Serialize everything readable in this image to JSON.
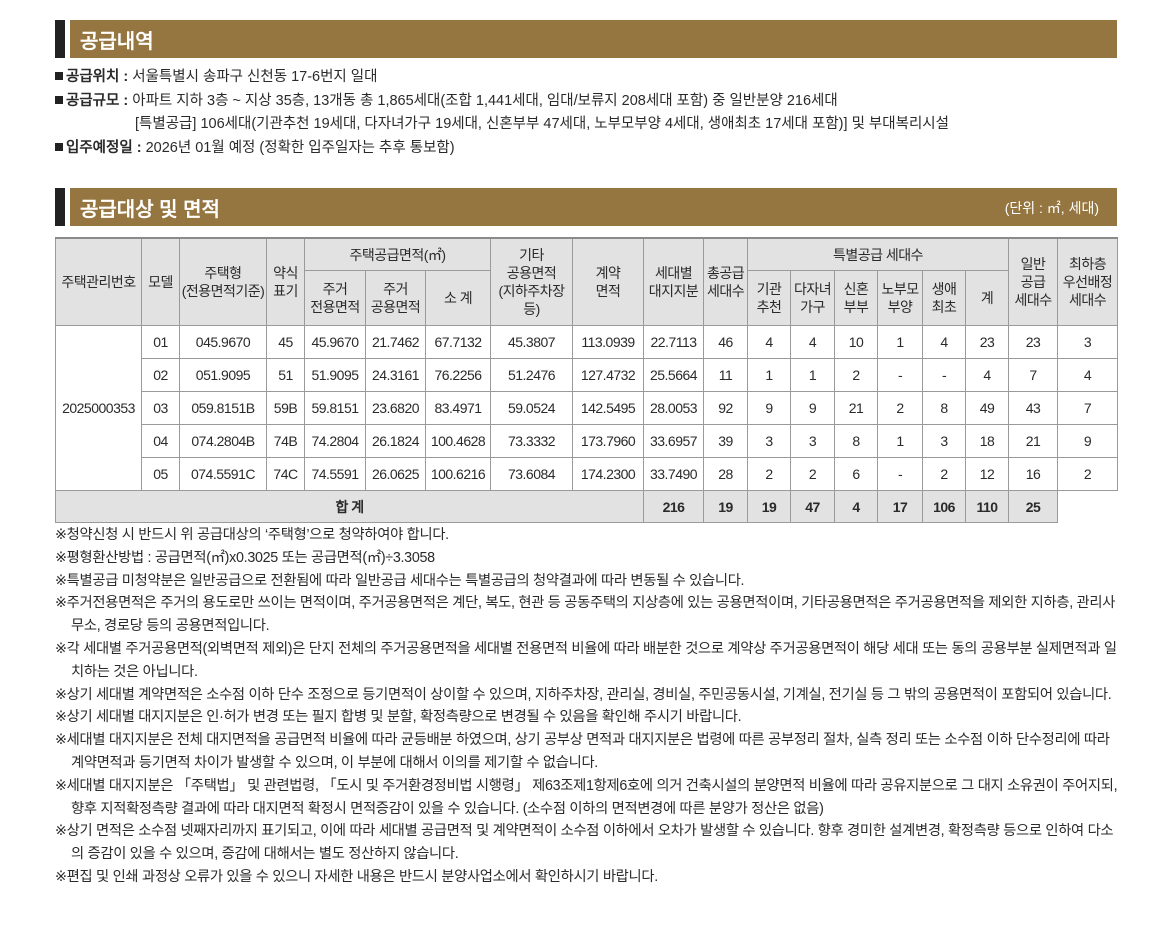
{
  "section1": {
    "title": "공급내역",
    "items": [
      {
        "label": "공급위치 :",
        "value": "서울특별시 송파구 신천동 17-6번지 일대"
      },
      {
        "label": "공급규모 :",
        "value": "아파트 지하 3층 ~ 지상 35층, 13개동 총 1,865세대(조합 1,441세대, 임대/보류지 208세대 포함) 중 일반분양 216세대",
        "value2": "[특별공급] 106세대(기관추천 19세대, 다자녀가구 19세대, 신혼부부 47세대, 노부모부양 4세대, 생애최초 17세대 포함)] 및 부대복리시설"
      },
      {
        "label": "입주예정일 :",
        "value": "2026년 01월 예정 (정확한 입주일자는 추후 통보함)"
      }
    ]
  },
  "section2": {
    "title": "공급대상 및 면적",
    "unit": "(단위 : ㎡, 세대)"
  },
  "table": {
    "headers": {
      "management_no": "주택관리번호",
      "model": "모델",
      "type": "주택형\n(전용면적기준)",
      "abbr": "약식\n표기",
      "supply_area": "주택공급면적(㎡)",
      "exclusive": "주거\n전용면적",
      "common": "주거\n공용면적",
      "subtotal": "소 계",
      "other_common": "기타\n공용면적\n(지하주차장등)",
      "contract_area": "계약\n면적",
      "land_share": "세대별\n대지지분",
      "total_units": "총공급\n세대수",
      "special": "특별공급 세대수",
      "inst": "기관\n추천",
      "multi_child": "다자녀\n가구",
      "newlywed": "신혼\n부부",
      "parents": "노부모\n부양",
      "first_time": "생애\n최초",
      "special_sum": "계",
      "general": "일반\n공급\n세대수",
      "lowest_floor": "최하층\n우선배정\n세대수"
    },
    "management_no": "2025000353",
    "rows": [
      [
        "01",
        "045.9670",
        "45",
        "45.9670",
        "21.7462",
        "67.7132",
        "45.3807",
        "113.0939",
        "22.7113",
        "46",
        "4",
        "4",
        "10",
        "1",
        "4",
        "23",
        "23",
        "3"
      ],
      [
        "02",
        "051.9095",
        "51",
        "51.9095",
        "24.3161",
        "76.2256",
        "51.2476",
        "127.4732",
        "25.5664",
        "11",
        "1",
        "1",
        "2",
        "-",
        "-",
        "4",
        "7",
        "4"
      ],
      [
        "03",
        "059.8151B",
        "59B",
        "59.8151",
        "23.6820",
        "83.4971",
        "59.0524",
        "142.5495",
        "28.0053",
        "92",
        "9",
        "9",
        "21",
        "2",
        "8",
        "49",
        "43",
        "7"
      ],
      [
        "04",
        "074.2804B",
        "74B",
        "74.2804",
        "26.1824",
        "100.4628",
        "73.3332",
        "173.7960",
        "33.6957",
        "39",
        "3",
        "3",
        "8",
        "1",
        "3",
        "18",
        "21",
        "9"
      ],
      [
        "05",
        "074.5591C",
        "74C",
        "74.5591",
        "26.0625",
        "100.6216",
        "73.6084",
        "174.2300",
        "33.7490",
        "28",
        "2",
        "2",
        "6",
        "-",
        "2",
        "12",
        "16",
        "2"
      ]
    ],
    "total": {
      "label": "합 계",
      "values": [
        "216",
        "19",
        "19",
        "47",
        "4",
        "17",
        "106",
        "110",
        "25"
      ]
    }
  },
  "notes": [
    "※청약신청 시 반드시 위 공급대상의 ‘주택형’으로 청약하여야 합니다.",
    "※평형환산방법 : 공급면적(㎡)x0.3025 또는 공급면적(㎡)÷3.3058",
    "※특별공급 미청약분은 일반공급으로 전환됨에 따라 일반공급 세대수는 특별공급의 청약결과에 따라 변동될 수 있습니다.",
    "※주거전용면적은 주거의 용도로만 쓰이는 면적이며, 주거공용면적은 계단, 복도, 현관 등 공동주택의 지상층에 있는 공용면적이며, 기타공용면적은 주거공용면적을 제외한 지하층, 관리사무소, 경로당 등의 공용면적입니다.",
    "※각 세대별 주거공용면적(외벽면적 제외)은 단지 전체의 주거공용면적을 세대별 전용면적 비율에 따라 배분한 것으로 계약상 주거공용면적이 해당 세대 또는 동의 공용부분 실제면적과 일치하는 것은 아닙니다.",
    "※상기 세대별 계약면적은 소수점 이하 단수 조정으로 등기면적이 상이할 수 있으며, 지하주차장, 관리실, 경비실, 주민공동시설, 기계실, 전기실 등 그 밖의 공용면적이 포함되어 있습니다.",
    "※상기 세대별 대지지분은 인·허가 변경 또는 필지 합병 및 분할, 확정측량으로 변경될 수 있음을 확인해 주시기 바랍니다.",
    "※세대별 대지지분은 전체 대지면적을 공급면적 비율에 따라 균등배분 하였으며, 상기 공부상 면적과 대지지분은 법령에 따른 공부정리 절차, 실측 정리 또는 소수점 이하 단수정리에 따라 계약면적과 등기면적 차이가 발생할 수 있으며, 이 부분에 대해서 이의를 제기할 수 없습니다.",
    "※세대별 대지지분은 「주택법」 및 관련법령, 「도시 및 주거환경정비법 시행령」 제63조제1항제6호에 의거 건축시설의 분양면적 비율에 따라 공유지분으로 그 대지 소유권이 주어지되, 향후 지적확정측량 결과에 따라 대지면적 확정시 면적증감이 있을 수 있습니다. (소수점 이하의 면적변경에 따른 분양가 정산은 없음)",
    "※상기 면적은 소수점 넷째자리까지 표기되고, 이에 따라 세대별 공급면적 및 계약면적이 소수점 이하에서 오차가 발생할 수 있습니다. 향후 경미한 설계변경, 확정측량 등으로 인하여 다소의 증감이 있을 수 있으며, 증감에 대해서는 별도 정산하지 않습니다.",
    "※편집 및 인쇄 과정상 오류가 있을 수 있으니 자세한 내용은 반드시 분양사업소에서 확인하시기 바랍니다."
  ],
  "colors": {
    "bar": "#957641",
    "header_bg": "#e2e2e2"
  }
}
